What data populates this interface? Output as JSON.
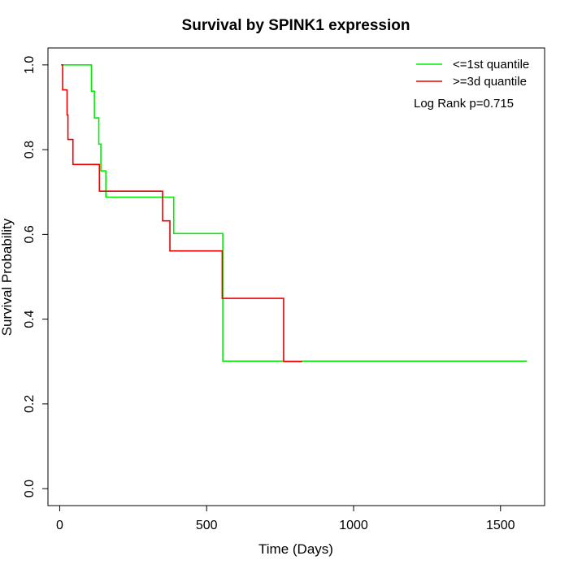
{
  "chart_data": {
    "type": "line",
    "title": "Survival by SPINK1 expression",
    "xlabel": "Time (Days)",
    "ylabel": "Survival Probability",
    "xlim": [
      -40,
      1650
    ],
    "ylim": [
      -0.04,
      1.04
    ],
    "x_ticks": [
      0,
      500,
      1000,
      1500
    ],
    "x_tick_labels": [
      "0",
      "500",
      "1000",
      "1500"
    ],
    "y_ticks": [
      0.0,
      0.2,
      0.4,
      0.6,
      0.8,
      1.0
    ],
    "y_tick_labels": [
      "0.0",
      "0.2",
      "0.4",
      "0.6",
      "0.8",
      "1.0"
    ],
    "grid": false,
    "legend_position": "top-right",
    "annotation": "Log Rank p=0.715",
    "series": [
      {
        "name": "<=1st quantile",
        "color": "#00ee00",
        "step": true,
        "points": [
          [
            5,
            1.0
          ],
          [
            108,
            0.938
          ],
          [
            118,
            0.875
          ],
          [
            133,
            0.813
          ],
          [
            140,
            0.75
          ],
          [
            157,
            0.688
          ],
          [
            388,
            0.602
          ],
          [
            555,
            0.301
          ],
          [
            1590,
            0.301
          ]
        ]
      },
      {
        "name": ">=3d quantile",
        "color": "#ee0000",
        "step": true,
        "points": [
          [
            5,
            1.0
          ],
          [
            10,
            0.941
          ],
          [
            25,
            0.882
          ],
          [
            28,
            0.824
          ],
          [
            45,
            0.765
          ],
          [
            135,
            0.702
          ],
          [
            350,
            0.632
          ],
          [
            375,
            0.561
          ],
          [
            553,
            0.449
          ],
          [
            762,
            0.3
          ],
          [
            825,
            0.3
          ]
        ]
      }
    ]
  }
}
